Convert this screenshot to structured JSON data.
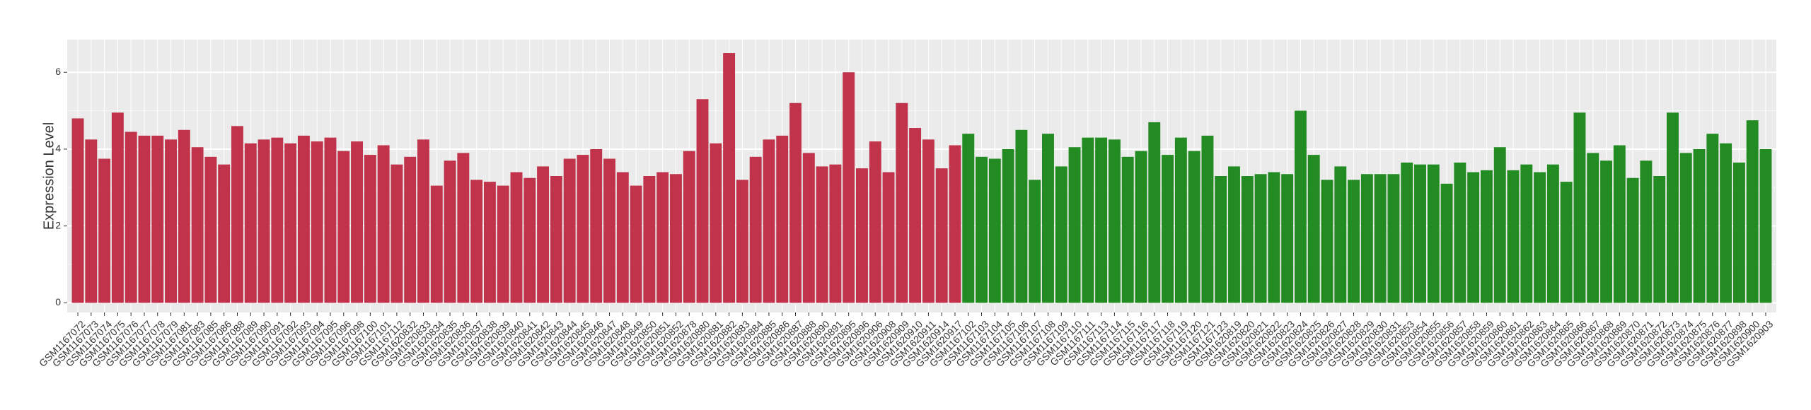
{
  "chart_data": {
    "type": "bar",
    "y_label": "Expression Level",
    "ylim": [
      -0.25,
      6.85
    ],
    "yticks": [
      0,
      2,
      4,
      6
    ],
    "grid": true,
    "groups": [
      {
        "color": "#c0334b",
        "categories": [
          "GSM1167072",
          "GSM1167073",
          "GSM1167074",
          "GSM1167075",
          "GSM1167076",
          "GSM1167077",
          "GSM1167078",
          "GSM1167079",
          "GSM1167081",
          "GSM1167083",
          "GSM1167085",
          "GSM1167086",
          "GSM1167088",
          "GSM1167089",
          "GSM1167090",
          "GSM1167091",
          "GSM1167092",
          "GSM1167093",
          "GSM1167094",
          "GSM1167095",
          "GSM1167096",
          "GSM1167098",
          "GSM1167100",
          "GSM1167101",
          "GSM1167112",
          "GSM1620832",
          "GSM1620833",
          "GSM1620834",
          "GSM1620835",
          "GSM1620836",
          "GSM1620837",
          "GSM1620838",
          "GSM1620839",
          "GSM1620840",
          "GSM1620841",
          "GSM1620842",
          "GSM1620843",
          "GSM1620844",
          "GSM1620845",
          "GSM1620846",
          "GSM1620847",
          "GSM1620848",
          "GSM1620849",
          "GSM1620850",
          "GSM1620851",
          "GSM1620852",
          "GSM1620878",
          "GSM1620880",
          "GSM1620881",
          "GSM1620882",
          "GSM1620883",
          "GSM1620884",
          "GSM1620885",
          "GSM1620886",
          "GSM1620887",
          "GSM1620888",
          "GSM1620890",
          "GSM1620891",
          "GSM1620895",
          "GSM1620896",
          "GSM1620906",
          "GSM1620908",
          "GSM1620909",
          "GSM1620910",
          "GSM1620911",
          "GSM1620914",
          "GSM1620917"
        ],
        "values": [
          4.8,
          4.25,
          3.75,
          4.95,
          4.45,
          4.35,
          4.35,
          4.25,
          4.5,
          4.05,
          3.8,
          3.6,
          4.6,
          4.15,
          4.25,
          4.3,
          4.15,
          4.35,
          4.2,
          4.3,
          3.95,
          4.2,
          3.85,
          4.1,
          3.6,
          3.8,
          4.25,
          3.05,
          3.7,
          3.9,
          3.2,
          3.15,
          3.05,
          3.4,
          3.25,
          3.55,
          3.3,
          3.75,
          3.85,
          4.0,
          3.75,
          3.4,
          3.05,
          3.3,
          3.4,
          3.35,
          3.95,
          5.3,
          4.15,
          6.5,
          3.2,
          3.8,
          4.25,
          4.35,
          5.2,
          3.9,
          3.55,
          3.6,
          6.0,
          3.5,
          4.2,
          3.4,
          5.2,
          4.55,
          4.25,
          3.5,
          4.1
        ]
      },
      {
        "color": "#228b22",
        "categories": [
          "GSM1167102",
          "GSM1167103",
          "GSM1167104",
          "GSM1167105",
          "GSM1167106",
          "GSM1167107",
          "GSM1167108",
          "GSM1167109",
          "GSM1167110",
          "GSM1167111",
          "GSM1167113",
          "GSM1167114",
          "GSM1167115",
          "GSM1167116",
          "GSM1167117",
          "GSM1167118",
          "GSM1167119",
          "GSM1167120",
          "GSM1167121",
          "GSM1167123",
          "GSM1620819",
          "GSM1620820",
          "GSM1620821",
          "GSM1620822",
          "GSM1620823",
          "GSM1620824",
          "GSM1620825",
          "GSM1620826",
          "GSM1620827",
          "GSM1620828",
          "GSM1620829",
          "GSM1620830",
          "GSM1620831",
          "GSM1620853",
          "GSM1620854",
          "GSM1620855",
          "GSM1620856",
          "GSM1620857",
          "GSM1620858",
          "GSM1620859",
          "GSM1620860",
          "GSM1620861",
          "GSM1620862",
          "GSM1620863",
          "GSM1620864",
          "GSM1620865",
          "GSM1620866",
          "GSM1620867",
          "GSM1620868",
          "GSM1620869",
          "GSM1620870",
          "GSM1620871",
          "GSM1620872",
          "GSM1620873",
          "GSM1620874",
          "GSM1620875",
          "GSM1620876",
          "GSM1620877",
          "GSM1620898",
          "GSM1620900",
          "GSM1620903"
        ],
        "values": [
          4.4,
          3.8,
          3.75,
          4.0,
          4.5,
          3.2,
          4.4,
          3.55,
          4.05,
          4.3,
          4.3,
          4.25,
          3.8,
          3.95,
          4.7,
          3.85,
          4.3,
          3.95,
          4.35,
          3.3,
          3.55,
          3.3,
          3.35,
          3.4,
          3.35,
          5.0,
          3.85,
          3.2,
          3.55,
          3.2,
          3.35,
          3.35,
          3.35,
          3.65,
          3.6,
          3.6,
          3.1,
          3.65,
          3.4,
          3.45,
          4.05,
          3.45,
          3.6,
          3.4,
          3.6,
          3.15,
          4.95,
          3.9,
          3.7,
          4.1,
          3.25,
          3.7,
          3.3,
          4.95,
          3.9,
          4.0,
          4.4,
          4.15,
          3.65,
          4.75,
          4.0
        ]
      }
    ]
  }
}
